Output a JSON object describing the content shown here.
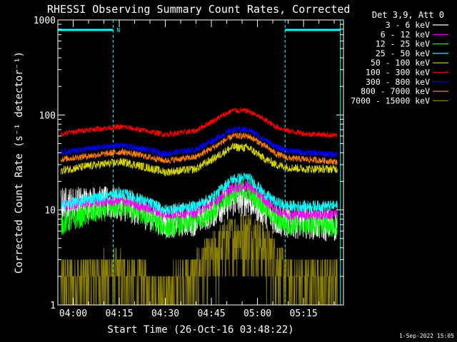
{
  "chart_data": {
    "type": "line",
    "title": "RHESSI Observing Summary Count Rates, Corrected",
    "xlabel": "Start Time (26-Oct-16 03:48:22)",
    "ylabel": "Corrected Count Rate (s⁻¹ detector⁻¹)",
    "y_scale": "log",
    "ylim": [
      1,
      1000
    ],
    "y_ticks": [
      {
        "value": 1,
        "label": "1"
      },
      {
        "value": 10,
        "label": "10"
      },
      {
        "value": 100,
        "label": "100"
      },
      {
        "value": 1000,
        "label": "1000"
      }
    ],
    "x_range_minutes": [
      235,
      328
    ],
    "x_ticks": [
      {
        "minute": 240,
        "label": "04:00"
      },
      {
        "minute": 255,
        "label": "04:15"
      },
      {
        "minute": 270,
        "label": "04:30"
      },
      {
        "minute": 285,
        "label": "04:45"
      },
      {
        "minute": 300,
        "label": "05:00"
      },
      {
        "minute": 315,
        "label": "05:15"
      }
    ],
    "legend_title": "Det 3,9, Att 0",
    "legend_position": "right",
    "timestamp": "1-Sep-2022 15:05",
    "night_marker": "N",
    "night_intervals_minutes": [
      [
        235,
        253
      ],
      [
        309,
        327
      ]
    ],
    "night_color": "#00ffff",
    "series": [
      {
        "name": "3 - 6 keV",
        "color": "#ffffff",
        "x": [
          236,
          245,
          256,
          270,
          280,
          286,
          292,
          297,
          302,
          306,
          310,
          316,
          322,
          326
        ],
        "y": [
          11.5,
          12,
          11.5,
          7.5,
          8,
          10,
          12.5,
          13,
          10,
          8,
          7.5,
          7.5,
          7,
          7
        ],
        "noise": 0.18
      },
      {
        "name": "6 - 12 keV",
        "color": "#ff00ff",
        "x": [
          236,
          245,
          256,
          270,
          280,
          286,
          292,
          297,
          302,
          306,
          310,
          316,
          322,
          326
        ],
        "y": [
          11,
          12,
          12.5,
          9,
          9.5,
          12,
          17,
          18,
          13,
          10,
          9,
          9,
          9,
          9
        ],
        "noise": 0.06
      },
      {
        "name": "12 - 25 keV",
        "color": "#00ff00",
        "x": [
          236,
          245,
          256,
          270,
          280,
          286,
          292,
          297,
          302,
          306,
          310,
          316,
          322,
          326
        ],
        "y": [
          7,
          9,
          11,
          6.5,
          7.5,
          10,
          15,
          16,
          11,
          8,
          7,
          7,
          7,
          6.5
        ],
        "noise": 0.12
      },
      {
        "name": "25 - 50 keV",
        "color": "#00ffff",
        "x": [
          236,
          245,
          256,
          270,
          280,
          286,
          292,
          297,
          302,
          306,
          310,
          316,
          322,
          326
        ],
        "y": [
          11,
          13,
          15,
          10,
          11,
          14,
          21,
          22,
          15,
          12,
          11,
          11,
          11,
          11
        ],
        "noise": 0.06
      },
      {
        "name": "50 - 100 keV",
        "color": "#d8d800",
        "x": [
          236,
          245,
          256,
          270,
          280,
          286,
          292,
          297,
          302,
          306,
          310,
          316,
          322,
          326
        ],
        "y": [
          26,
          29,
          32,
          25,
          27,
          35,
          46,
          45,
          35,
          30,
          28,
          27,
          27,
          27
        ],
        "noise": 0.045
      },
      {
        "name": "100 - 300 keV",
        "color": "#ff0000",
        "x": [
          236,
          245,
          256,
          270,
          280,
          286,
          292,
          297,
          302,
          306,
          310,
          316,
          322,
          326
        ],
        "y": [
          63,
          70,
          75,
          62,
          68,
          88,
          112,
          110,
          90,
          75,
          68,
          63,
          62,
          60
        ],
        "noise": 0.03
      },
      {
        "name": "300 - 800 keV",
        "color": "#0000ff",
        "x": [
          236,
          245,
          256,
          270,
          280,
          286,
          292,
          297,
          302,
          306,
          310,
          316,
          322,
          326
        ],
        "y": [
          40,
          44,
          48,
          39,
          43,
          55,
          70,
          70,
          56,
          46,
          42,
          40,
          39,
          38
        ],
        "noise": 0.035
      },
      {
        "name": "800 - 7000 keV",
        "color": "#ff8000",
        "x": [
          236,
          245,
          256,
          270,
          280,
          286,
          292,
          297,
          302,
          306,
          310,
          316,
          322,
          326
        ],
        "y": [
          34,
          37,
          41,
          33,
          36,
          46,
          60,
          60,
          48,
          39,
          35,
          34,
          33,
          32
        ],
        "noise": 0.035
      },
      {
        "name": "7000 - 15000 keV",
        "color": "#8b8000",
        "x": [
          236,
          245,
          256,
          270,
          280,
          286,
          292,
          297,
          302,
          306,
          310,
          316,
          322,
          326
        ],
        "y": [
          1.8,
          2,
          2.2,
          1.3,
          2.2,
          3.5,
          5.5,
          6,
          4.5,
          3,
          2,
          1.8,
          1.8,
          1.8
        ],
        "noise": 0.5
      }
    ]
  }
}
